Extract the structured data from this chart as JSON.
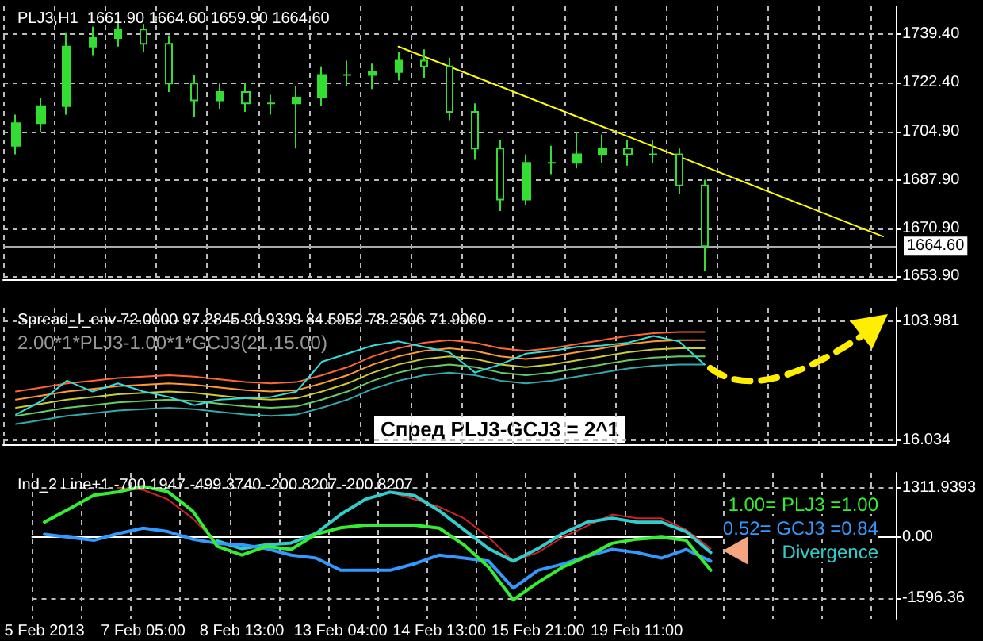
{
  "chart_data": [
    {
      "type": "candlestick",
      "title": "PLJ3,H1  1661.90 1664.60 1659.90 1664.60",
      "color": "#33dd33",
      "grid": true,
      "tick_labels": "y",
      "categories": [
        null,
        null,
        null,
        null,
        null,
        null,
        null,
        null,
        null,
        null,
        null,
        null,
        null,
        null,
        null,
        null,
        null,
        null,
        null,
        null,
        null,
        null,
        null,
        null,
        null,
        null,
        null,
        null,
        null,
        null,
        null,
        null,
        null,
        null,
        null
      ],
      "ohlc": [
        [
          1700,
          1711,
          1697,
          1708
        ],
        [
          1708,
          1717,
          1705,
          1714
        ],
        [
          1714,
          1740,
          1711,
          1735
        ],
        [
          1735,
          1742,
          1732,
          1738
        ],
        [
          1738,
          1744,
          1735,
          1741
        ],
        [
          1741,
          1743,
          1733,
          1736
        ],
        [
          1736,
          1739,
          1719,
          1722
        ],
        [
          1722,
          1725,
          1710,
          1716
        ],
        [
          1716,
          1722,
          1713,
          1719
        ],
        [
          1719,
          1722,
          1712,
          1715
        ],
        [
          1715,
          1718,
          1711,
          1715
        ],
        [
          1715,
          1721,
          1699,
          1717
        ],
        [
          1717,
          1728,
          1714,
          1725
        ],
        [
          1725,
          1730,
          1721,
          1725
        ],
        [
          1725,
          1729,
          1720,
          1726
        ],
        [
          1726,
          1733,
          1723,
          1730
        ],
        [
          1730,
          1734,
          1724,
          1728
        ],
        [
          1728,
          1731,
          1709,
          1712
        ],
        [
          1712,
          1715,
          1695,
          1699
        ],
        [
          1699,
          1702,
          1677,
          1681
        ],
        [
          1681,
          1697,
          1679,
          1694
        ],
        [
          1694,
          1700,
          1690,
          1694
        ],
        [
          1694,
          1705,
          1692,
          1697
        ],
        [
          1697,
          1704,
          1694,
          1699
        ],
        [
          1699,
          1702,
          1693,
          1697
        ],
        [
          1697,
          1702,
          1694,
          1697
        ],
        [
          1697,
          1699,
          1683,
          1686
        ],
        [
          1686,
          1688,
          1656,
          1664.6
        ],
        null,
        null,
        null,
        null,
        null,
        null,
        null
      ],
      "series": [
        {
          "type": "line",
          "color": "#ffff00",
          "values": [
            null,
            null,
            null,
            null,
            null,
            null,
            null,
            null,
            null,
            null,
            null,
            null,
            null,
            null,
            null,
            1735,
            null,
            null,
            null,
            null,
            null,
            null,
            null,
            null,
            null,
            null,
            null,
            null,
            null,
            null,
            null,
            null,
            null,
            null,
            1668
          ]
        }
      ],
      "ylim": [
        1652.9,
        1749.2
      ],
      "yticks": [
        {
          "value": 1739.4,
          "label": "1739.40"
        },
        {
          "value": 1722.4,
          "label": "1722.40"
        },
        {
          "value": 1704.9,
          "label": "1704.90"
        },
        {
          "value": 1687.9,
          "label": "1687.90"
        },
        {
          "value": 1670.9,
          "label": "1670.90"
        },
        {
          "value": 1653.9,
          "label": "1653.90"
        }
      ],
      "ref_lines": [
        {
          "axis": "y",
          "value": 1664.6,
          "label": "1664.60",
          "color": "#aaaaaa"
        }
      ]
    },
    {
      "type": "line",
      "title": "Spread_I_env 72.0000 97.2845 90.9399 84.5952 78.2506 71.9060",
      "subtitle": "2.00*1*PLJ3-1.00*1*GCJ3(21,15.00)",
      "grid": true,
      "tick_labels": "y",
      "annotations": [
        "Спред PLJ3-GCJ3 = 2^1"
      ],
      "categories": [
        null,
        null,
        null,
        null,
        null,
        null,
        null,
        null,
        null,
        null,
        null,
        null,
        null,
        null,
        null,
        null,
        null,
        null,
        null,
        null,
        null,
        null,
        null,
        null,
        null,
        null,
        null,
        null,
        null,
        null,
        null,
        null,
        null,
        null,
        null
      ],
      "series": [
        {
          "color": "#ff6633",
          "values": [
            52,
            55,
            58,
            60,
            62,
            63,
            64,
            63,
            61,
            59,
            58,
            59,
            64,
            70,
            78,
            84,
            88,
            90,
            88,
            84,
            82,
            84,
            87,
            90,
            93,
            95,
            96,
            96,
            null,
            null,
            null,
            null,
            null,
            null,
            null
          ]
        },
        {
          "color": "#ff9933",
          "values": [
            46,
            49,
            52,
            54,
            56,
            57,
            58,
            57,
            55,
            53,
            52,
            53,
            58,
            64,
            72,
            78,
            82,
            84,
            82,
            78,
            76,
            78,
            81,
            84,
            87,
            89,
            90,
            90,
            null,
            null,
            null,
            null,
            null,
            null,
            null
          ]
        },
        {
          "color": "#cccc33",
          "values": [
            40,
            43,
            46,
            48,
            50,
            51,
            52,
            51,
            49,
            47,
            46,
            47,
            52,
            58,
            66,
            72,
            76,
            78,
            76,
            72,
            70,
            72,
            75,
            78,
            81,
            83,
            84,
            84,
            null,
            null,
            null,
            null,
            null,
            null,
            null
          ]
        },
        {
          "color": "#66cc66",
          "values": [
            34,
            37,
            40,
            42,
            44,
            45,
            46,
            45,
            43,
            41,
            40,
            41,
            46,
            52,
            60,
            66,
            70,
            72,
            70,
            66,
            64,
            66,
            69,
            72,
            75,
            77,
            78,
            78,
            null,
            null,
            null,
            null,
            null,
            null,
            null
          ]
        },
        {
          "color": "#33aaaa",
          "values": [
            28,
            31,
            34,
            36,
            38,
            39,
            40,
            39,
            37,
            35,
            34,
            35,
            40,
            46,
            54,
            60,
            64,
            66,
            64,
            60,
            58,
            60,
            63,
            66,
            69,
            71,
            72,
            72,
            null,
            null,
            null,
            null,
            null,
            null,
            null
          ]
        },
        {
          "color": "#33dddd",
          "values": [
            35,
            45,
            60,
            52,
            58,
            52,
            48,
            42,
            46,
            47,
            48,
            52,
            74,
            80,
            86,
            89,
            85,
            81,
            66,
            72,
            80,
            82,
            85,
            86,
            88,
            93,
            89,
            72,
            null,
            null,
            null,
            null,
            null,
            null,
            null
          ]
        }
      ],
      "ylim": [
        13.1,
        113.8
      ],
      "yticks": [
        {
          "value": 103.981,
          "label": "103.981"
        },
        {
          "value": 16.034,
          "label": "16.034"
        }
      ]
    },
    {
      "type": "line",
      "title": "Ind_2 Line+1 -700.1947 -499.3740 -200.8207 -200.8207",
      "grid": true,
      "legend": "top right",
      "categories": [
        "5 Feb 2013",
        null,
        null,
        null,
        "7 Feb 05:00",
        null,
        null,
        null,
        "8 Feb 13:00",
        null,
        null,
        null,
        "13 Feb 04:00",
        null,
        null,
        null,
        "14 Feb 13:00",
        null,
        null,
        null,
        "15 Feb 21:00",
        null,
        null,
        null,
        "19 Feb 11:00",
        null,
        null,
        null,
        null,
        null,
        null,
        null,
        null,
        null,
        null
      ],
      "series": [
        {
          "color": "#cc2222",
          "values": [
            null,
            null,
            null,
            1300,
            1250,
            1000,
            500,
            -150,
            null,
            null,
            null,
            null,
            null,
            null,
            null,
            null,
            null,
            null,
            null,
            null,
            null,
            null,
            null,
            null,
            null,
            null,
            null,
            null,
            null,
            null,
            null,
            null,
            null,
            null,
            null
          ]
        },
        {
          "color": "#cc2222",
          "values": [
            null,
            null,
            null,
            null,
            null,
            null,
            null,
            null,
            null,
            null,
            null,
            null,
            null,
            null,
            1190,
            1000,
            800,
            500,
            0,
            -630,
            -400,
            0,
            300,
            600,
            500,
            500,
            200,
            -300,
            null,
            null,
            null,
            null,
            null,
            null,
            null
          ]
        },
        {
          "name": "Divergence",
          "color": "#33cccc",
          "values": [
            null,
            null,
            null,
            null,
            null,
            null,
            null,
            -100,
            -300,
            -200,
            -150,
            100,
            600,
            1000,
            1190,
            1100,
            700,
            200,
            -300,
            -630,
            -300,
            100,
            400,
            500,
            400,
            400,
            150,
            -400,
            null,
            null,
            null,
            null,
            null,
            null,
            null
          ]
        },
        {
          "name": "0.52= GCJ3 =0.84",
          "color": "#3399ff",
          "values": [
            80,
            0,
            -80,
            100,
            240,
            150,
            -50,
            -160,
            -200,
            -300,
            -470,
            -550,
            -870,
            -870,
            -870,
            -700,
            -470,
            -550,
            -630,
            -1340,
            -870,
            -710,
            -500,
            -320,
            -400,
            -550,
            -320,
            -630,
            null,
            null,
            null,
            null,
            null,
            null,
            null
          ]
        },
        {
          "name": "1.00= PLJ3 =1.00",
          "color": "#33ee33",
          "values": [
            400,
            750,
            1110,
            1200,
            1340,
            1200,
            700,
            -240,
            -470,
            -240,
            -320,
            80,
            250,
            320,
            320,
            320,
            240,
            -200,
            -790,
            -1650,
            -1190,
            -790,
            -500,
            -160,
            -50,
            0,
            -80,
            -870,
            null,
            null,
            null,
            null,
            null,
            null,
            null
          ]
        }
      ],
      "ylim": [
        -2150,
        1700
      ],
      "yticks": [
        {
          "value": 1311.9393,
          "label": "1311.9393"
        },
        {
          "value": 0,
          "label": "0.00"
        },
        {
          "value": -1596.36,
          "label": "-1596.36"
        }
      ]
    }
  ]
}
